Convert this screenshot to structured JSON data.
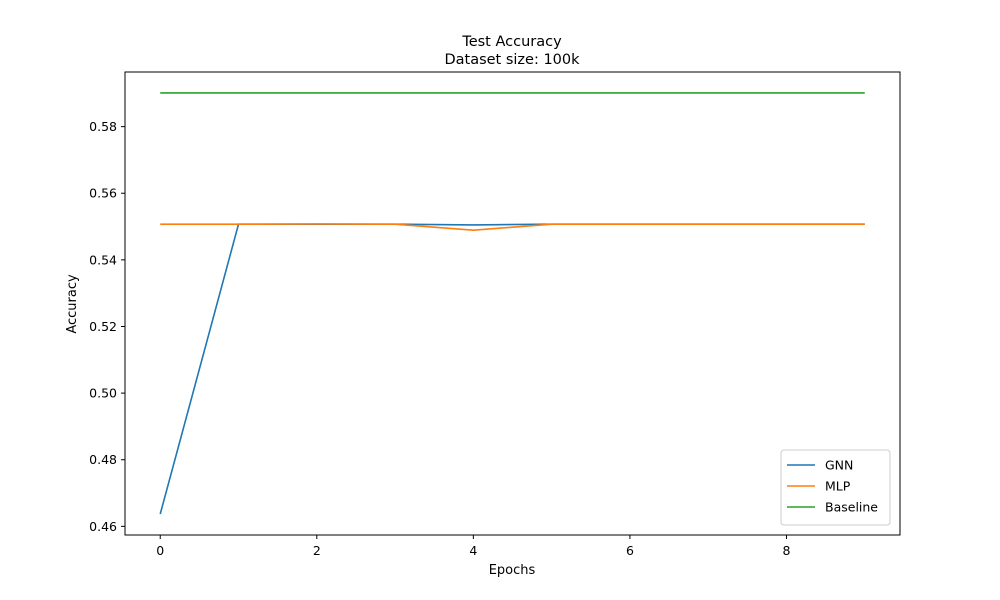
{
  "chart_data": {
    "type": "line",
    "title": "Test Accuracy",
    "subtitle": "Dataset size: 100k",
    "xlabel": "Epochs",
    "ylabel": "Accuracy",
    "x": [
      0,
      1,
      2,
      3,
      4,
      5,
      6,
      7,
      8,
      9
    ],
    "xlim": [
      -0.45,
      9.45
    ],
    "ylim": [
      0.4574,
      0.5964
    ],
    "xticks": [
      0,
      2,
      4,
      6,
      8
    ],
    "xtick_labels": [
      "0",
      "2",
      "4",
      "6",
      "8"
    ],
    "yticks": [
      0.46,
      0.48,
      0.5,
      0.52,
      0.54,
      0.56,
      0.58
    ],
    "ytick_labels": [
      "0.46",
      "0.48",
      "0.50",
      "0.52",
      "0.54",
      "0.56",
      "0.58"
    ],
    "grid": false,
    "legend_position": "lower-right",
    "series": [
      {
        "name": "GNN",
        "color": "#1f77b4",
        "values": [
          0.4637,
          0.5507,
          0.5507,
          0.5507,
          0.5505,
          0.5507,
          0.5507,
          0.5507,
          0.5507,
          0.5507
        ]
      },
      {
        "name": "MLP",
        "color": "#ff7f0e",
        "values": [
          0.5507,
          0.5507,
          0.5508,
          0.5507,
          0.5489,
          0.5507,
          0.5507,
          0.5507,
          0.5507,
          0.5507
        ]
      },
      {
        "name": "Baseline",
        "color": "#2ca02c",
        "values": [
          0.5901,
          0.5901,
          0.5901,
          0.5901,
          0.5901,
          0.5901,
          0.5901,
          0.5901,
          0.5901,
          0.5901
        ]
      }
    ]
  }
}
